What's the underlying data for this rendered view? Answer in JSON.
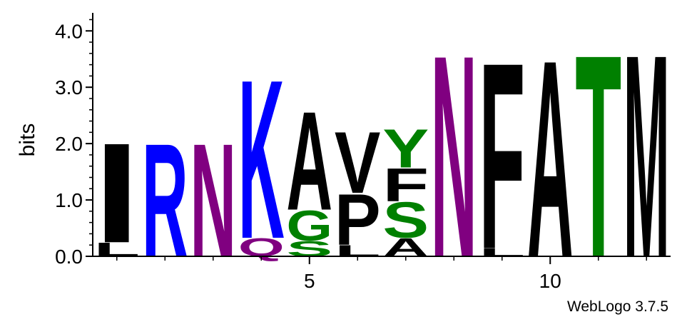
{
  "chart_data": {
    "type": "sequence-logo",
    "ylabel": "bits",
    "ylim": [
      0,
      4.32
    ],
    "yticks": [
      {
        "value": 0.0,
        "label": "0.0"
      },
      {
        "value": 1.0,
        "label": "1.0"
      },
      {
        "value": 2.0,
        "label": "2.0"
      },
      {
        "value": 3.0,
        "label": "3.0"
      },
      {
        "value": 4.0,
        "label": "4.0"
      }
    ],
    "yminor_step": 0.2,
    "xrange": [
      0.5,
      12.5
    ],
    "xticks": [
      {
        "value": 5,
        "label": "5"
      },
      {
        "value": 10,
        "label": "10"
      }
    ],
    "xminor": [
      1,
      2,
      3,
      4,
      6,
      7,
      8,
      9,
      11,
      12
    ],
    "positions": [
      {
        "pos": 1,
        "letters": [
          {
            "char": "I",
            "height": 1.82,
            "color": "#000000"
          },
          {
            "char": "L",
            "height": 0.25,
            "color": "#000000"
          }
        ]
      },
      {
        "pos": 2,
        "letters": [
          {
            "char": "R",
            "height": 2.07,
            "color": "#0000ff"
          }
        ]
      },
      {
        "pos": 3,
        "letters": [
          {
            "char": "N",
            "height": 2.07,
            "color": "#800080"
          }
        ]
      },
      {
        "pos": 4,
        "letters": [
          {
            "char": "K",
            "height": 2.9,
            "color": "#0000ff"
          },
          {
            "char": "Q",
            "height": 0.33,
            "color": "#800080"
          }
        ]
      },
      {
        "pos": 5,
        "letters": [
          {
            "char": "A",
            "height": 1.8,
            "color": "#000000"
          },
          {
            "char": "G",
            "height": 0.55,
            "color": "#008000"
          },
          {
            "char": "S",
            "height": 0.28,
            "color": "#008000"
          }
        ]
      },
      {
        "pos": 6,
        "letters": [
          {
            "char": "V",
            "height": 1.12,
            "color": "#000000"
          },
          {
            "char": "P",
            "height": 0.93,
            "color": "#000000"
          },
          {
            "char": "L",
            "height": 0.2,
            "color": "#000000"
          }
        ]
      },
      {
        "pos": 7,
        "letters": [
          {
            "char": "Y",
            "height": 0.7,
            "color": "#008000"
          },
          {
            "char": "F",
            "height": 0.6,
            "color": "#000000"
          },
          {
            "char": "S",
            "height": 0.65,
            "color": "#008000"
          },
          {
            "char": "A",
            "height": 0.33,
            "color": "#000000"
          }
        ]
      },
      {
        "pos": 8,
        "letters": [
          {
            "char": "N",
            "height": 3.69,
            "color": "#800080"
          }
        ]
      },
      {
        "pos": 9,
        "letters": [
          {
            "char": "F",
            "height": 3.4,
            "color": "#000000"
          },
          {
            "char": "L",
            "height": 0.15,
            "color": "#000000"
          }
        ]
      },
      {
        "pos": 10,
        "letters": [
          {
            "char": "A",
            "height": 3.6,
            "color": "#000000"
          }
        ]
      },
      {
        "pos": 11,
        "letters": [
          {
            "char": "T",
            "height": 3.7,
            "color": "#008000"
          }
        ]
      },
      {
        "pos": 12,
        "letters": [
          {
            "char": "M",
            "height": 3.7,
            "color": "#000000"
          }
        ]
      }
    ],
    "footer": "WebLogo 3.7.5"
  }
}
